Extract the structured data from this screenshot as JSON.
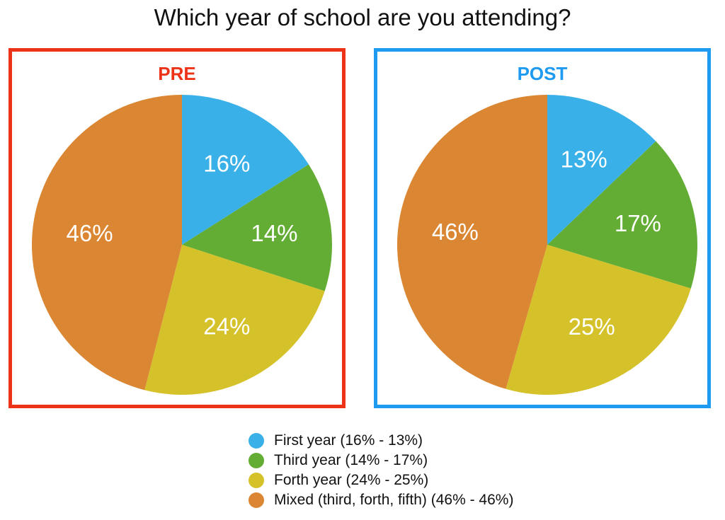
{
  "title": "Which year of school are you attending?",
  "colors": {
    "first": "#3ab0e8",
    "third": "#63ad35",
    "forth": "#d5c22a",
    "mixed": "#db8632",
    "pre_frame": "#ec3318",
    "post_frame": "#1e9af0"
  },
  "legend": [
    {
      "label": "First year (16% - 13%)",
      "color": "#3ab0e8"
    },
    {
      "label": "Third year (14% - 17%)",
      "color": "#63ad35"
    },
    {
      "label": "Forth year (24% - 25%)",
      "color": "#d5c22a"
    },
    {
      "label": "Mixed (third, forth, fifth) (46% - 46%)",
      "color": "#db8632"
    }
  ],
  "chart_data": [
    {
      "type": "pie",
      "title": "PRE",
      "categories": [
        "First year",
        "Third year",
        "Forth year",
        "Mixed (third, forth, fifth)"
      ],
      "values": [
        16,
        14,
        24,
        46
      ],
      "data_labels": [
        "16%",
        "14%",
        "24%",
        "46%"
      ]
    },
    {
      "type": "pie",
      "title": "POST",
      "categories": [
        "First year",
        "Third year",
        "Forth year",
        "Mixed (third, forth, fifth)"
      ],
      "values": [
        13,
        17,
        25,
        46
      ],
      "data_labels": [
        "13%",
        "17%",
        "25%",
        "46%"
      ]
    }
  ]
}
